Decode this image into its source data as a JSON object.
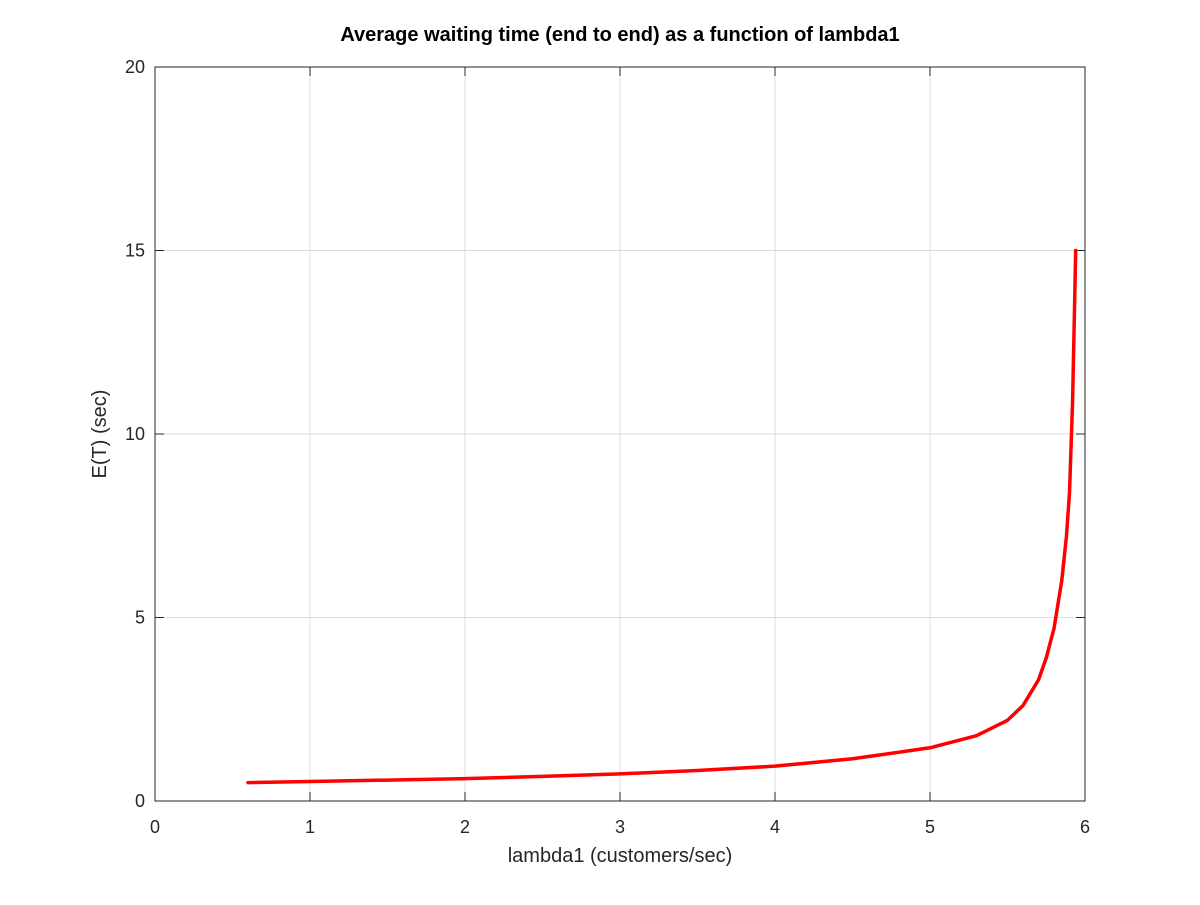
{
  "chart_data": {
    "type": "line",
    "title": "Average waiting time (end to end) as a function of lambda1",
    "xlabel": "lambda1 (customers/sec)",
    "ylabel": "E(T) (sec)",
    "xlim": [
      0,
      6
    ],
    "ylim": [
      0,
      20
    ],
    "xticks": [
      0,
      1,
      2,
      3,
      4,
      5,
      6
    ],
    "yticks": [
      0,
      5,
      10,
      15,
      20
    ],
    "xtick_labels": [
      "0",
      "1",
      "2",
      "3",
      "4",
      "5",
      "6"
    ],
    "ytick_labels": [
      "0",
      "5",
      "10",
      "15",
      "20"
    ],
    "grid": true,
    "legend": null,
    "series": [
      {
        "color": "#ff0000",
        "x": [
          0.6,
          1.0,
          1.5,
          2.0,
          2.5,
          3.0,
          3.5,
          4.0,
          4.5,
          5.0,
          5.3,
          5.5,
          5.6,
          5.7,
          5.75,
          5.8,
          5.85,
          5.88,
          5.9,
          5.92,
          5.94
        ],
        "y": [
          0.5,
          0.53,
          0.57,
          0.61,
          0.67,
          0.74,
          0.83,
          0.95,
          1.15,
          1.45,
          1.78,
          2.2,
          2.6,
          3.3,
          3.9,
          4.7,
          6.0,
          7.2,
          8.4,
          10.9,
          15.0
        ]
      }
    ]
  }
}
